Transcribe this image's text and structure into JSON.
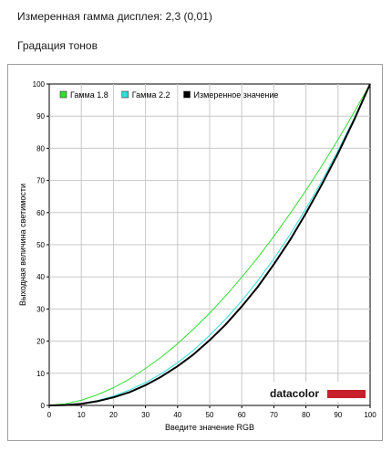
{
  "header": {
    "measured_gamma": "Измеренная гамма дисплея: 2,3 (0,01)",
    "section_title": "Градация тонов"
  },
  "logo": {
    "text": "datacolor",
    "bar_color": "#c8202a"
  },
  "chart_data": {
    "type": "line",
    "title": "",
    "xlabel": "Введите значение RGB",
    "ylabel": "Выходная величина светимости",
    "xlim": [
      0,
      100
    ],
    "ylim": [
      0,
      100
    ],
    "x_ticks": [
      "0",
      "10",
      "20",
      "30",
      "40",
      "50",
      "60",
      "70",
      "80",
      "90",
      "100"
    ],
    "y_ticks": [
      "0",
      "10",
      "20",
      "30",
      "40",
      "50",
      "60",
      "70",
      "80",
      "90",
      "100"
    ],
    "grid": true,
    "legend_position": "top-left",
    "x": [
      0,
      5,
      10,
      15,
      20,
      25,
      30,
      35,
      40,
      45,
      50,
      55,
      60,
      65,
      70,
      75,
      80,
      85,
      90,
      95,
      100
    ],
    "series": [
      {
        "name": "Гамма 1.8",
        "color": "#33dd33",
        "values": [
          0,
          0.5,
          1.6,
          3.3,
          5.5,
          8.2,
          11.5,
          15.1,
          19.2,
          23.8,
          28.7,
          34.1,
          39.9,
          46.0,
          52.6,
          59.6,
          66.9,
          74.6,
          82.7,
          91.2,
          100
        ]
      },
      {
        "name": "Гамма 2.2",
        "color": "#33dddd",
        "values": [
          0,
          0.1,
          0.6,
          1.5,
          2.9,
          4.8,
          7.1,
          9.9,
          13.3,
          17.2,
          21.8,
          26.9,
          32.5,
          38.8,
          45.6,
          53.1,
          61.2,
          69.9,
          79.3,
          89.3,
          100
        ]
      },
      {
        "name": "Измеренное значение",
        "color": "#000000",
        "values": [
          0,
          0.1,
          0.5,
          1.3,
          2.5,
          4.1,
          6.3,
          9.0,
          12.2,
          15.9,
          20.3,
          25.2,
          30.8,
          36.9,
          43.9,
          51.4,
          59.8,
          68.8,
          78.4,
          88.8,
          100
        ]
      }
    ]
  }
}
